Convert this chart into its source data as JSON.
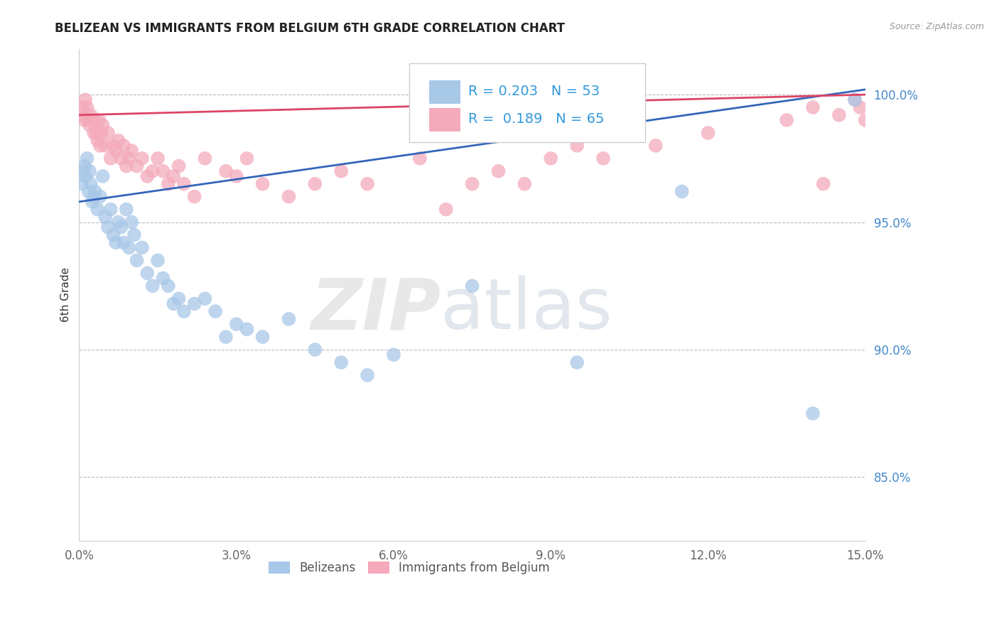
{
  "title": "BELIZEAN VS IMMIGRANTS FROM BELGIUM 6TH GRADE CORRELATION CHART",
  "source": "Source: ZipAtlas.com",
  "ylabel": "6th Grade",
  "xmin": 0.0,
  "xmax": 15.0,
  "ymin": 82.5,
  "ymax": 101.8,
  "blue_R": 0.203,
  "blue_N": 53,
  "pink_R": 0.189,
  "pink_N": 65,
  "blue_color": "#A8C8E8",
  "pink_color": "#F4AABB",
  "blue_line_color": "#3366BB",
  "pink_line_color": "#DD4466",
  "legend_label_blue": "Belizeans",
  "legend_label_pink": "Immigrants from Belgium",
  "yticks": [
    85.0,
    90.0,
    95.0,
    100.0
  ],
  "xticks": [
    0.0,
    3.0,
    6.0,
    9.0,
    12.0,
    15.0
  ],
  "blue_line_x0": 0.0,
  "blue_line_y0": 95.8,
  "blue_line_x1": 15.0,
  "blue_line_y1": 100.2,
  "pink_line_x0": 0.0,
  "pink_line_y0": 99.2,
  "pink_line_x1": 15.0,
  "pink_line_y1": 100.0,
  "blue_points_x": [
    0.05,
    0.08,
    0.1,
    0.12,
    0.15,
    0.18,
    0.2,
    0.22,
    0.25,
    0.28,
    0.3,
    0.35,
    0.4,
    0.45,
    0.5,
    0.55,
    0.6,
    0.65,
    0.7,
    0.75,
    0.8,
    0.85,
    0.9,
    0.95,
    1.0,
    1.05,
    1.1,
    1.2,
    1.3,
    1.4,
    1.5,
    1.6,
    1.7,
    1.8,
    1.9,
    2.0,
    2.2,
    2.4,
    2.6,
    2.8,
    3.0,
    3.2,
    3.5,
    4.0,
    4.5,
    5.0,
    5.5,
    6.0,
    7.5,
    9.5,
    11.5,
    14.0,
    14.8
  ],
  "blue_points_y": [
    96.5,
    97.0,
    97.2,
    96.8,
    97.5,
    96.2,
    97.0,
    96.5,
    95.8,
    96.0,
    96.2,
    95.5,
    96.0,
    96.8,
    95.2,
    94.8,
    95.5,
    94.5,
    94.2,
    95.0,
    94.8,
    94.2,
    95.5,
    94.0,
    95.0,
    94.5,
    93.5,
    94.0,
    93.0,
    92.5,
    93.5,
    92.8,
    92.5,
    91.8,
    92.0,
    91.5,
    91.8,
    92.0,
    91.5,
    90.5,
    91.0,
    90.8,
    90.5,
    91.2,
    90.0,
    89.5,
    89.0,
    89.8,
    92.5,
    89.5,
    96.2,
    87.5,
    99.8
  ],
  "pink_points_x": [
    0.05,
    0.08,
    0.1,
    0.12,
    0.15,
    0.18,
    0.2,
    0.22,
    0.25,
    0.28,
    0.3,
    0.32,
    0.35,
    0.38,
    0.4,
    0.42,
    0.45,
    0.5,
    0.55,
    0.6,
    0.65,
    0.7,
    0.75,
    0.8,
    0.85,
    0.9,
    0.95,
    1.0,
    1.1,
    1.2,
    1.3,
    1.4,
    1.5,
    1.6,
    1.7,
    1.8,
    1.9,
    2.0,
    2.2,
    2.4,
    2.8,
    3.0,
    3.2,
    3.5,
    4.0,
    4.5,
    5.0,
    5.5,
    6.5,
    7.0,
    7.5,
    8.0,
    8.5,
    9.0,
    9.5,
    10.0,
    11.0,
    12.0,
    13.5,
    14.0,
    14.5,
    14.8,
    14.9,
    15.0,
    14.2
  ],
  "pink_points_y": [
    99.5,
    99.2,
    99.0,
    99.8,
    99.5,
    99.0,
    98.8,
    99.2,
    99.0,
    98.5,
    99.0,
    98.5,
    98.2,
    99.0,
    98.0,
    98.5,
    98.8,
    98.0,
    98.5,
    97.5,
    98.0,
    97.8,
    98.2,
    97.5,
    98.0,
    97.2,
    97.5,
    97.8,
    97.2,
    97.5,
    96.8,
    97.0,
    97.5,
    97.0,
    96.5,
    96.8,
    97.2,
    96.5,
    96.0,
    97.5,
    97.0,
    96.8,
    97.5,
    96.5,
    96.0,
    96.5,
    97.0,
    96.5,
    97.5,
    95.5,
    96.5,
    97.0,
    96.5,
    97.5,
    98.0,
    97.5,
    98.0,
    98.5,
    99.0,
    99.5,
    99.2,
    99.8,
    99.5,
    99.0,
    96.5
  ]
}
